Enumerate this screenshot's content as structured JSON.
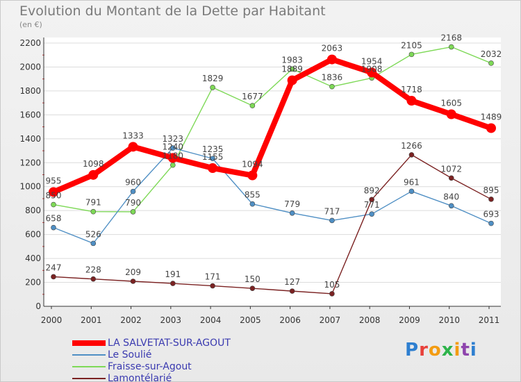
{
  "title": "Evolution du Montant de la Dette par Habitant",
  "subtitle": "(en €)",
  "logo": {
    "text": "Proxiti",
    "colors": [
      "#2e7fd0",
      "#e8403a",
      "#f39c12",
      "#2db34a",
      "#f39c12",
      "#8e44ad",
      "#2e7fd0"
    ]
  },
  "chart_data": {
    "type": "line",
    "title": "Evolution du Montant de la Dette par Habitant",
    "ylabel": "(en €)",
    "xlabel": "",
    "x": [
      "2000",
      "2001",
      "2002",
      "2003",
      "2004",
      "2005",
      "2006",
      "2007",
      "2008",
      "2009",
      "2010",
      "2011"
    ],
    "ylim": [
      0,
      2200
    ],
    "yticks": [
      "0",
      "200",
      "400",
      "600",
      "800",
      "1000",
      "1200",
      "1400",
      "1600",
      "1800",
      "2000",
      "2200"
    ],
    "grid": "horizontal",
    "legend_position": "bottom-left",
    "series": [
      {
        "name": "LA SALVETAT-SUR-AGOUT",
        "color": "#ff0000",
        "values": [
          955,
          1098,
          1333,
          1240,
          1155,
          1094,
          1889,
          2063,
          1954,
          1718,
          1605,
          1489
        ]
      },
      {
        "name": "Le Soulié",
        "color": "#4f8fc4",
        "values": [
          658,
          526,
          960,
          1323,
          1235,
          855,
          779,
          717,
          771,
          961,
          840,
          693
        ]
      },
      {
        "name": "Fraisse-sur-Agout",
        "color": "#7ed957",
        "values": [
          850,
          791,
          790,
          1180,
          1829,
          1677,
          1983,
          1836,
          1908,
          2105,
          2168,
          2032
        ]
      },
      {
        "name": "Lamontélarié",
        "color": "#7b2222",
        "values": [
          247,
          228,
          209,
          191,
          171,
          150,
          127,
          105,
          892,
          1266,
          1072,
          895
        ]
      }
    ]
  }
}
